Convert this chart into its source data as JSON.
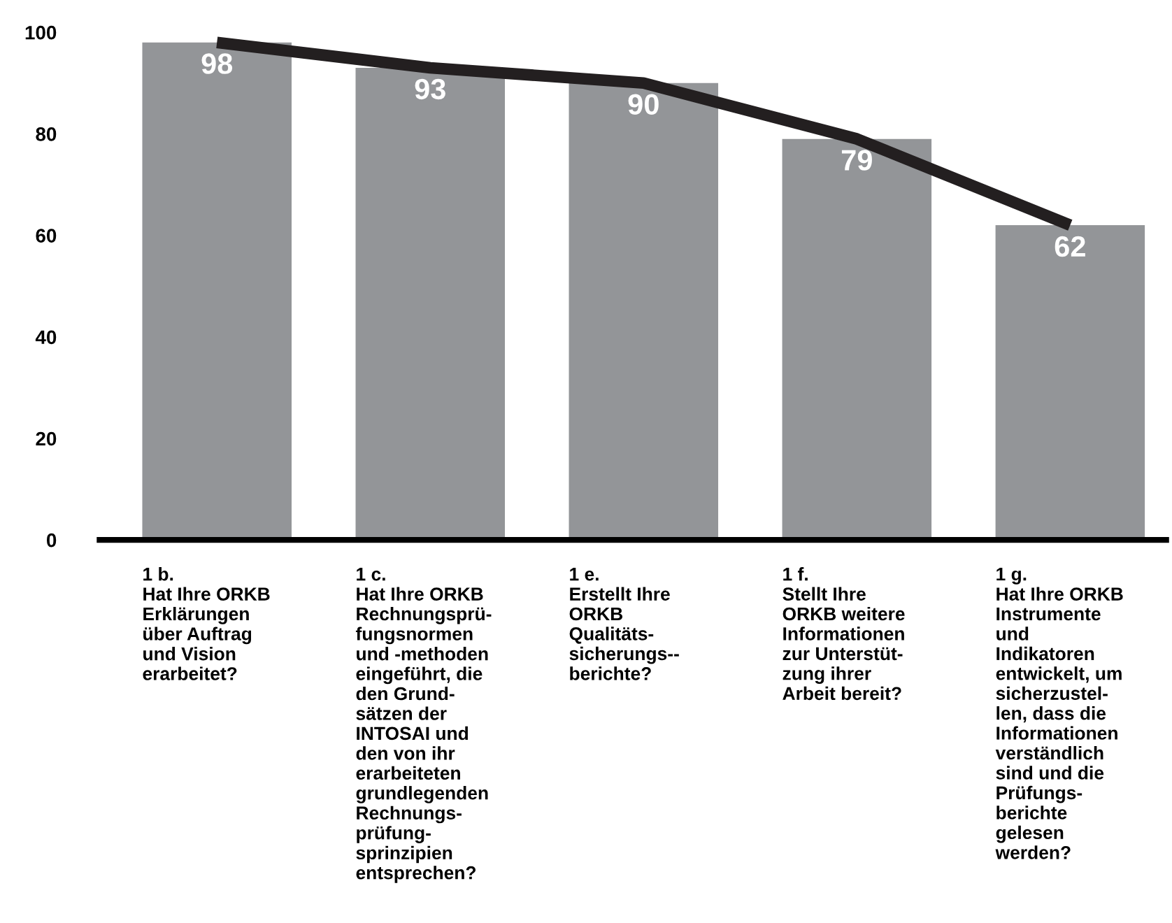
{
  "chart_data": {
    "type": "bar",
    "categories": [
      "1 b.\nHat Ihre ORKB\nErklärungen\nüber Auftrag\nund Vision\nerarbeitet?",
      "1 c.\nHat Ihre ORKB\nRechnungsprü-\nfungsnormen\nund -methoden\neingeführt, die\nden Grund-\nsätzen der\nINTOSAI und\nden von ihr\nerarbeiteten\ngrundlegenden\nRechnungs-\nprüfung-\nsprinzipien\nentsprechen?",
      "1 e.\nErstellt Ihre\nORKB\nQualitäts-\nsicherungs--\nberichte?",
      "1 f.\nStellt Ihre\nORKB weitere\nInformationen\nzur Unterstüt-\nzung ihrer\nArbeit bereit?",
      "1 g.\nHat Ihre ORKB\nInstrumente\nund\nIndikatoren\nentwickelt, um\nsicherzustel-\nlen, dass die\nInformationen\nverständlich\nsind und die\nPrüfungs-\nberichte\ngelesen\nwerden?"
    ],
    "series": [
      {
        "color": "#939598",
        "values": [
          98,
          93,
          90,
          79,
          62
        ],
        "value_labels": [
          "98",
          "93",
          "90",
          "79",
          "62"
        ]
      },
      {
        "type": "line",
        "color": "#231f20",
        "values": [
          98,
          93,
          90,
          79,
          62
        ]
      }
    ],
    "ylim": [
      0,
      100
    ],
    "yticks": [
      0,
      20,
      40,
      60,
      80,
      100
    ],
    "grid": false,
    "marker": "none",
    "line_style": "solid"
  }
}
